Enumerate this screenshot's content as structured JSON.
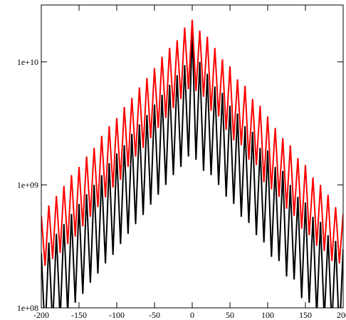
{
  "chart_data": {
    "type": "line",
    "log_y": true,
    "x": [
      -200,
      -195,
      -190,
      -185,
      -180,
      -175,
      -170,
      -165,
      -160,
      -155,
      -150,
      -145,
      -140,
      -135,
      -130,
      -125,
      -120,
      -115,
      -110,
      -105,
      -100,
      -95,
      -90,
      -85,
      -80,
      -75,
      -70,
      -65,
      -60,
      -55,
      -50,
      -45,
      -40,
      -35,
      -30,
      -25,
      -20,
      -15,
      -10,
      -5,
      0,
      5,
      10,
      15,
      20,
      25,
      30,
      35,
      40,
      45,
      50,
      55,
      60,
      65,
      70,
      75,
      80,
      85,
      90,
      95,
      100,
      105,
      110,
      115,
      120,
      125,
      130,
      135,
      140,
      145,
      150,
      155,
      160,
      165,
      170,
      175,
      180,
      185,
      190,
      195,
      200
    ],
    "series": [
      {
        "color": "#000000",
        "values": [
          280000000.0,
          60000000.0,
          340000000.0,
          70000000.0,
          400000000.0,
          80000000.0,
          480000000.0,
          90000000.0,
          580000000.0,
          110000000.0,
          700000000.0,
          130000000.0,
          840000000.0,
          160000000.0,
          1000000000.0,
          190000000.0,
          1200000000.0,
          230000000.0,
          1500000000.0,
          270000000.0,
          1800000000.0,
          330000000.0,
          2100000000.0,
          400000000.0,
          2600000000.0,
          480000000.0,
          3100000000.0,
          570000000.0,
          3700000000.0,
          690000000.0,
          4500000000.0,
          830000000.0,
          5400000000.0,
          1000000000.0,
          6500000000.0,
          1200000000.0,
          7800000000.0,
          1400000000.0,
          9400000000.0,
          1700000000.0,
          18000000000.0,
          1600000000.0,
          10000000000.0,
          1300000000.0,
          8000000000.0,
          1200000000.0,
          6300000000.0,
          1000000000.0,
          5600000000.0,
          800000000.0,
          4400000000.0,
          700000000.0,
          3800000000.0,
          550000000.0,
          3000000000.0,
          490000000.0,
          2700000000.0,
          390000000.0,
          2000000000.0,
          340000000.0,
          1900000000.0,
          260000000.0,
          1400000000.0,
          240000000.0,
          1300000000.0,
          180000000.0,
          1000000000.0,
          170000000.0,
          800000000.0,
          120000000.0,
          720000000.0,
          110000000.0,
          550000000.0,
          85000000.0,
          500000000.0,
          80000000.0,
          390000000.0,
          70000000.0,
          350000000.0,
          60000000.0,
          300000000.0
        ]
      },
      {
        "color": "#ff0000",
        "values": [
          560000000.0,
          220000000.0,
          680000000.0,
          250000000.0,
          810000000.0,
          280000000.0,
          980000000.0,
          330000000.0,
          1200000000.0,
          380000000.0,
          1400000000.0,
          460000000.0,
          1700000000.0,
          550000000.0,
          2000000000.0,
          660000000.0,
          2500000000.0,
          790000000.0,
          3000000000.0,
          950000000.0,
          3500000000.0,
          1100000000.0,
          4300000000.0,
          1400000000.0,
          5100000000.0,
          1700000000.0,
          6200000000.0,
          2000000000.0,
          7400000000.0,
          2400000000.0,
          8900000000.0,
          2900000000.0,
          11000000000.0,
          3500000000.0,
          13000000000.0,
          4200000000.0,
          15000000000.0,
          5000000000.0,
          19000000000.0,
          6000000000.0,
          22000000000.0,
          5800000000.0,
          18000000000.0,
          5200000000.0,
          16000000000.0,
          4000000000.0,
          13000000000.0,
          3600000000.0,
          10500000000.0,
          2800000000.0,
          9200000000.0,
          2300000000.0,
          7200000000.0,
          2100000000.0,
          6400000000.0,
          1600000000.0,
          5000000000.0,
          1450000000.0,
          4400000000.0,
          1050000000.0,
          3600000000.0,
          920000000.0,
          2900000000.0,
          800000000.0,
          2400000000.0,
          640000000.0,
          2100000000.0,
          560000000.0,
          1650000000.0,
          440000000.0,
          1450000000.0,
          390000000.0,
          1150000000.0,
          320000000.0,
          1000000000.0,
          290000000.0,
          830000000.0,
          240000000.0,
          660000000.0,
          230000000.0,
          580000000.0
        ]
      }
    ],
    "xlim": [
      -200,
      200
    ],
    "xticks": [
      -200,
      -150,
      -100,
      -50,
      0,
      50,
      100,
      150,
      200
    ],
    "ylim": [
      100000000,
      29000000000
    ],
    "yticks": [
      {
        "value": 100000000,
        "label": "1e+08"
      },
      {
        "value": 1000000000,
        "label": "1e+09"
      },
      {
        "value": 10000000000,
        "label": "1e+10"
      }
    ]
  }
}
